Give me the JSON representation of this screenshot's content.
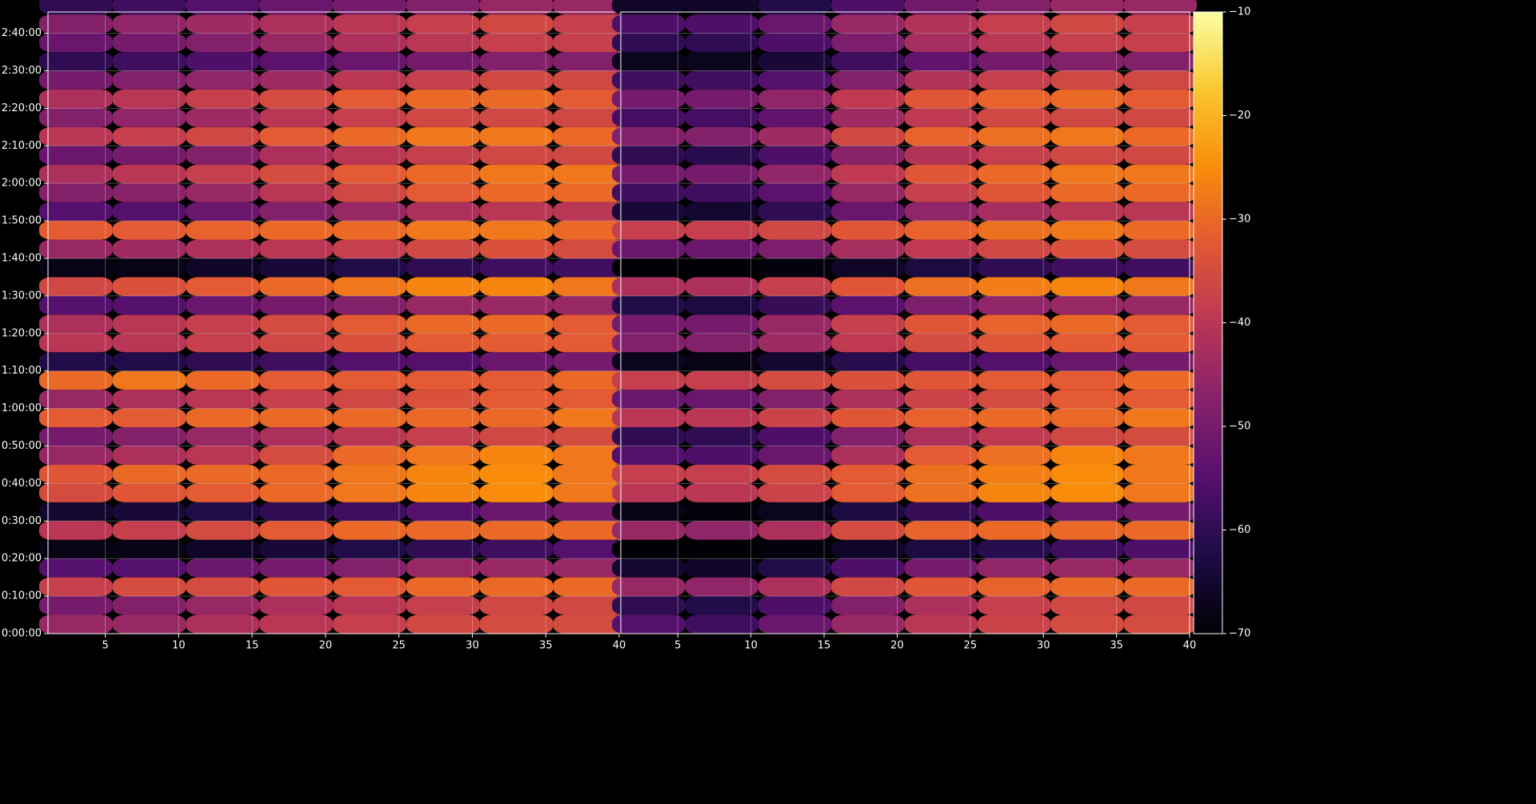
{
  "chart_data": {
    "type": "heatmap",
    "colormap": "inferno",
    "grid": true,
    "ylim": [
      0,
      9940
    ],
    "yticks": [
      {
        "value": 0,
        "label": "0:00:00"
      },
      {
        "value": 600,
        "label": "0:10:00"
      },
      {
        "value": 1200,
        "label": "0:20:00"
      },
      {
        "value": 1800,
        "label": "0:30:00"
      },
      {
        "value": 2400,
        "label": "0:40:00"
      },
      {
        "value": 3000,
        "label": "0:50:00"
      },
      {
        "value": 3600,
        "label": "1:00:00"
      },
      {
        "value": 4200,
        "label": "1:10:00"
      },
      {
        "value": 4800,
        "label": "1:20:00"
      },
      {
        "value": 5400,
        "label": "1:30:00"
      },
      {
        "value": 6000,
        "label": "1:40:00"
      },
      {
        "value": 6600,
        "label": "1:50:00"
      },
      {
        "value": 7200,
        "label": "2:00:00"
      },
      {
        "value": 7800,
        "label": "2:10:00"
      },
      {
        "value": 8400,
        "label": "2:20:00"
      },
      {
        "value": 9000,
        "label": "2:30:00"
      },
      {
        "value": 9600,
        "label": "2:40:00"
      }
    ],
    "y": [
      0,
      300,
      600,
      900,
      1200,
      1500,
      1800,
      2100,
      2400,
      2700,
      3000,
      3300,
      3600,
      3900,
      4200,
      4500,
      4800,
      5100,
      5400,
      5700,
      6000,
      6300,
      6600,
      6900,
      7200,
      7500,
      7800,
      8100,
      8400,
      8700,
      9000,
      9300,
      9600,
      9900
    ],
    "colorbar": {
      "lim": [
        -70,
        -10
      ],
      "ticks": [
        {
          "value": -70,
          "label": "−70"
        },
        {
          "value": -60,
          "label": "−60"
        },
        {
          "value": -50,
          "label": "−50"
        },
        {
          "value": -40,
          "label": "−40"
        },
        {
          "value": -30,
          "label": "−30"
        },
        {
          "value": -20,
          "label": "−20"
        },
        {
          "value": -10,
          "label": "−10"
        }
      ]
    },
    "panels": [
      {
        "xlim": [
          1.1,
          40
        ],
        "xticks": [
          5,
          10,
          15,
          20,
          25,
          30,
          35,
          40
        ],
        "x": [
          3,
          8,
          13,
          18,
          23,
          28,
          33,
          38
        ],
        "values": [
          [
            -45,
            -45,
            -42,
            -40,
            -38,
            -36,
            -35,
            -35
          ],
          [
            -50,
            -48,
            -45,
            -42,
            -40,
            -38,
            -36,
            -36
          ],
          [
            -38,
            -35,
            -35,
            -33,
            -32,
            -30,
            -30,
            -30
          ],
          [
            -55,
            -55,
            -52,
            -50,
            -48,
            -45,
            -45,
            -45
          ],
          [
            -68,
            -68,
            -66,
            -64,
            -62,
            -60,
            -58,
            -55
          ],
          [
            -40,
            -38,
            -35,
            -32,
            -30,
            -30,
            -30,
            -30
          ],
          [
            -65,
            -64,
            -62,
            -60,
            -58,
            -55,
            -52,
            -50
          ],
          [
            -35,
            -33,
            -32,
            -30,
            -28,
            -26,
            -25,
            -28
          ],
          [
            -33,
            -30,
            -30,
            -30,
            -28,
            -26,
            -25,
            -28
          ],
          [
            -45,
            -42,
            -40,
            -35,
            -30,
            -28,
            -26,
            -28
          ],
          [
            -50,
            -48,
            -45,
            -42,
            -40,
            -38,
            -36,
            -35
          ],
          [
            -32,
            -32,
            -30,
            -30,
            -30,
            -30,
            -30,
            -28
          ],
          [
            -45,
            -42,
            -40,
            -38,
            -36,
            -34,
            -32,
            -32
          ],
          [
            -30,
            -28,
            -30,
            -32,
            -32,
            -32,
            -32,
            -30
          ],
          [
            -62,
            -62,
            -60,
            -58,
            -55,
            -55,
            -52,
            -50
          ],
          [
            -40,
            -40,
            -38,
            -36,
            -34,
            -32,
            -32,
            -32
          ],
          [
            -42,
            -40,
            -38,
            -35,
            -32,
            -30,
            -30,
            -32
          ],
          [
            -55,
            -55,
            -52,
            -50,
            -48,
            -45,
            -45,
            -45
          ],
          [
            -36,
            -34,
            -32,
            -30,
            -28,
            -26,
            -26,
            -28
          ],
          [
            -68,
            -68,
            -66,
            -64,
            -62,
            -60,
            -58,
            -58
          ],
          [
            -45,
            -44,
            -42,
            -40,
            -38,
            -36,
            -34,
            -35
          ],
          [
            -32,
            -32,
            -31,
            -30,
            -30,
            -28,
            -28,
            -30
          ],
          [
            -55,
            -55,
            -52,
            -48,
            -45,
            -42,
            -40,
            -40
          ],
          [
            -48,
            -47,
            -45,
            -40,
            -36,
            -32,
            -30,
            -30
          ],
          [
            -42,
            -40,
            -38,
            -35,
            -32,
            -30,
            -28,
            -28
          ],
          [
            -52,
            -50,
            -48,
            -42,
            -40,
            -38,
            -36,
            -36
          ],
          [
            -40,
            -38,
            -36,
            -32,
            -30,
            -28,
            -28,
            -30
          ],
          [
            -48,
            -46,
            -44,
            -40,
            -38,
            -36,
            -36,
            -36
          ],
          [
            -42,
            -40,
            -38,
            -35,
            -32,
            -30,
            -30,
            -32
          ],
          [
            -50,
            -48,
            -46,
            -44,
            -40,
            -38,
            -36,
            -36
          ],
          [
            -60,
            -58,
            -56,
            -54,
            -52,
            -50,
            -48,
            -48
          ],
          [
            -52,
            -50,
            -48,
            -45,
            -42,
            -40,
            -38,
            -38
          ],
          [
            -48,
            -46,
            -44,
            -42,
            -40,
            -38,
            -36,
            -38
          ],
          [
            -60,
            -58,
            -55,
            -52,
            -50,
            -48,
            -45,
            -45
          ]
        ]
      },
      {
        "xlim": [
          1.1,
          40
        ],
        "xticks": [
          5,
          10,
          15,
          20,
          25,
          30,
          35,
          40
        ],
        "x": [
          3,
          8,
          13,
          18,
          23,
          28,
          33,
          38
        ],
        "values": [
          [
            -55,
            -58,
            -52,
            -45,
            -40,
            -37,
            -35,
            -35
          ],
          [
            -60,
            -62,
            -56,
            -48,
            -42,
            -38,
            -36,
            -36
          ],
          [
            -45,
            -46,
            -42,
            -36,
            -33,
            -31,
            -30,
            -30
          ],
          [
            -65,
            -66,
            -62,
            -56,
            -50,
            -46,
            -45,
            -45
          ],
          [
            -70,
            -70,
            -69,
            -66,
            -63,
            -61,
            -58,
            -56
          ],
          [
            -45,
            -46,
            -42,
            -35,
            -31,
            -30,
            -30,
            -30
          ],
          [
            -68,
            -69,
            -67,
            -63,
            -59,
            -56,
            -52,
            -50
          ],
          [
            -40,
            -40,
            -37,
            -32,
            -29,
            -26,
            -25,
            -28
          ],
          [
            -38,
            -38,
            -35,
            -32,
            -29,
            -27,
            -25,
            -28
          ],
          [
            -55,
            -56,
            -52,
            -42,
            -32,
            -29,
            -26,
            -28
          ],
          [
            -60,
            -60,
            -56,
            -48,
            -42,
            -39,
            -36,
            -35
          ],
          [
            -40,
            -40,
            -37,
            -33,
            -31,
            -30,
            -30,
            -28
          ],
          [
            -52,
            -52,
            -48,
            -42,
            -37,
            -35,
            -32,
            -32
          ],
          [
            -38,
            -38,
            -35,
            -34,
            -33,
            -32,
            -32,
            -30
          ],
          [
            -67,
            -68,
            -65,
            -61,
            -57,
            -55,
            -52,
            -50
          ],
          [
            -48,
            -48,
            -44,
            -39,
            -35,
            -33,
            -32,
            -32
          ],
          [
            -50,
            -50,
            -45,
            -38,
            -33,
            -31,
            -30,
            -32
          ],
          [
            -62,
            -63,
            -59,
            -54,
            -49,
            -46,
            -45,
            -45
          ],
          [
            -42,
            -42,
            -38,
            -33,
            -29,
            -27,
            -26,
            -28
          ],
          [
            -70,
            -70,
            -69,
            -66,
            -63,
            -60,
            -58,
            -58
          ],
          [
            -52,
            -52,
            -49,
            -43,
            -39,
            -36,
            -34,
            -35
          ],
          [
            -38,
            -38,
            -36,
            -33,
            -31,
            -29,
            -28,
            -30
          ],
          [
            -64,
            -65,
            -60,
            -52,
            -46,
            -43,
            -40,
            -40
          ],
          [
            -58,
            -58,
            -54,
            -45,
            -38,
            -33,
            -30,
            -30
          ],
          [
            -50,
            -50,
            -46,
            -39,
            -33,
            -30,
            -28,
            -28
          ],
          [
            -60,
            -61,
            -56,
            -47,
            -41,
            -38,
            -36,
            -36
          ],
          [
            -48,
            -48,
            -44,
            -36,
            -31,
            -29,
            -28,
            -30
          ],
          [
            -57,
            -57,
            -53,
            -44,
            -39,
            -36,
            -36,
            -36
          ],
          [
            -50,
            -50,
            -46,
            -39,
            -33,
            -31,
            -30,
            -32
          ],
          [
            -58,
            -58,
            -55,
            -48,
            -41,
            -38,
            -36,
            -36
          ],
          [
            -67,
            -67,
            -64,
            -58,
            -53,
            -50,
            -48,
            -48
          ],
          [
            -60,
            -60,
            -56,
            -49,
            -43,
            -40,
            -38,
            -38
          ],
          [
            -56,
            -56,
            -52,
            -45,
            -41,
            -38,
            -36,
            -38
          ],
          [
            -66,
            -66,
            -62,
            -56,
            -51,
            -48,
            -45,
            -45
          ]
        ]
      }
    ]
  }
}
